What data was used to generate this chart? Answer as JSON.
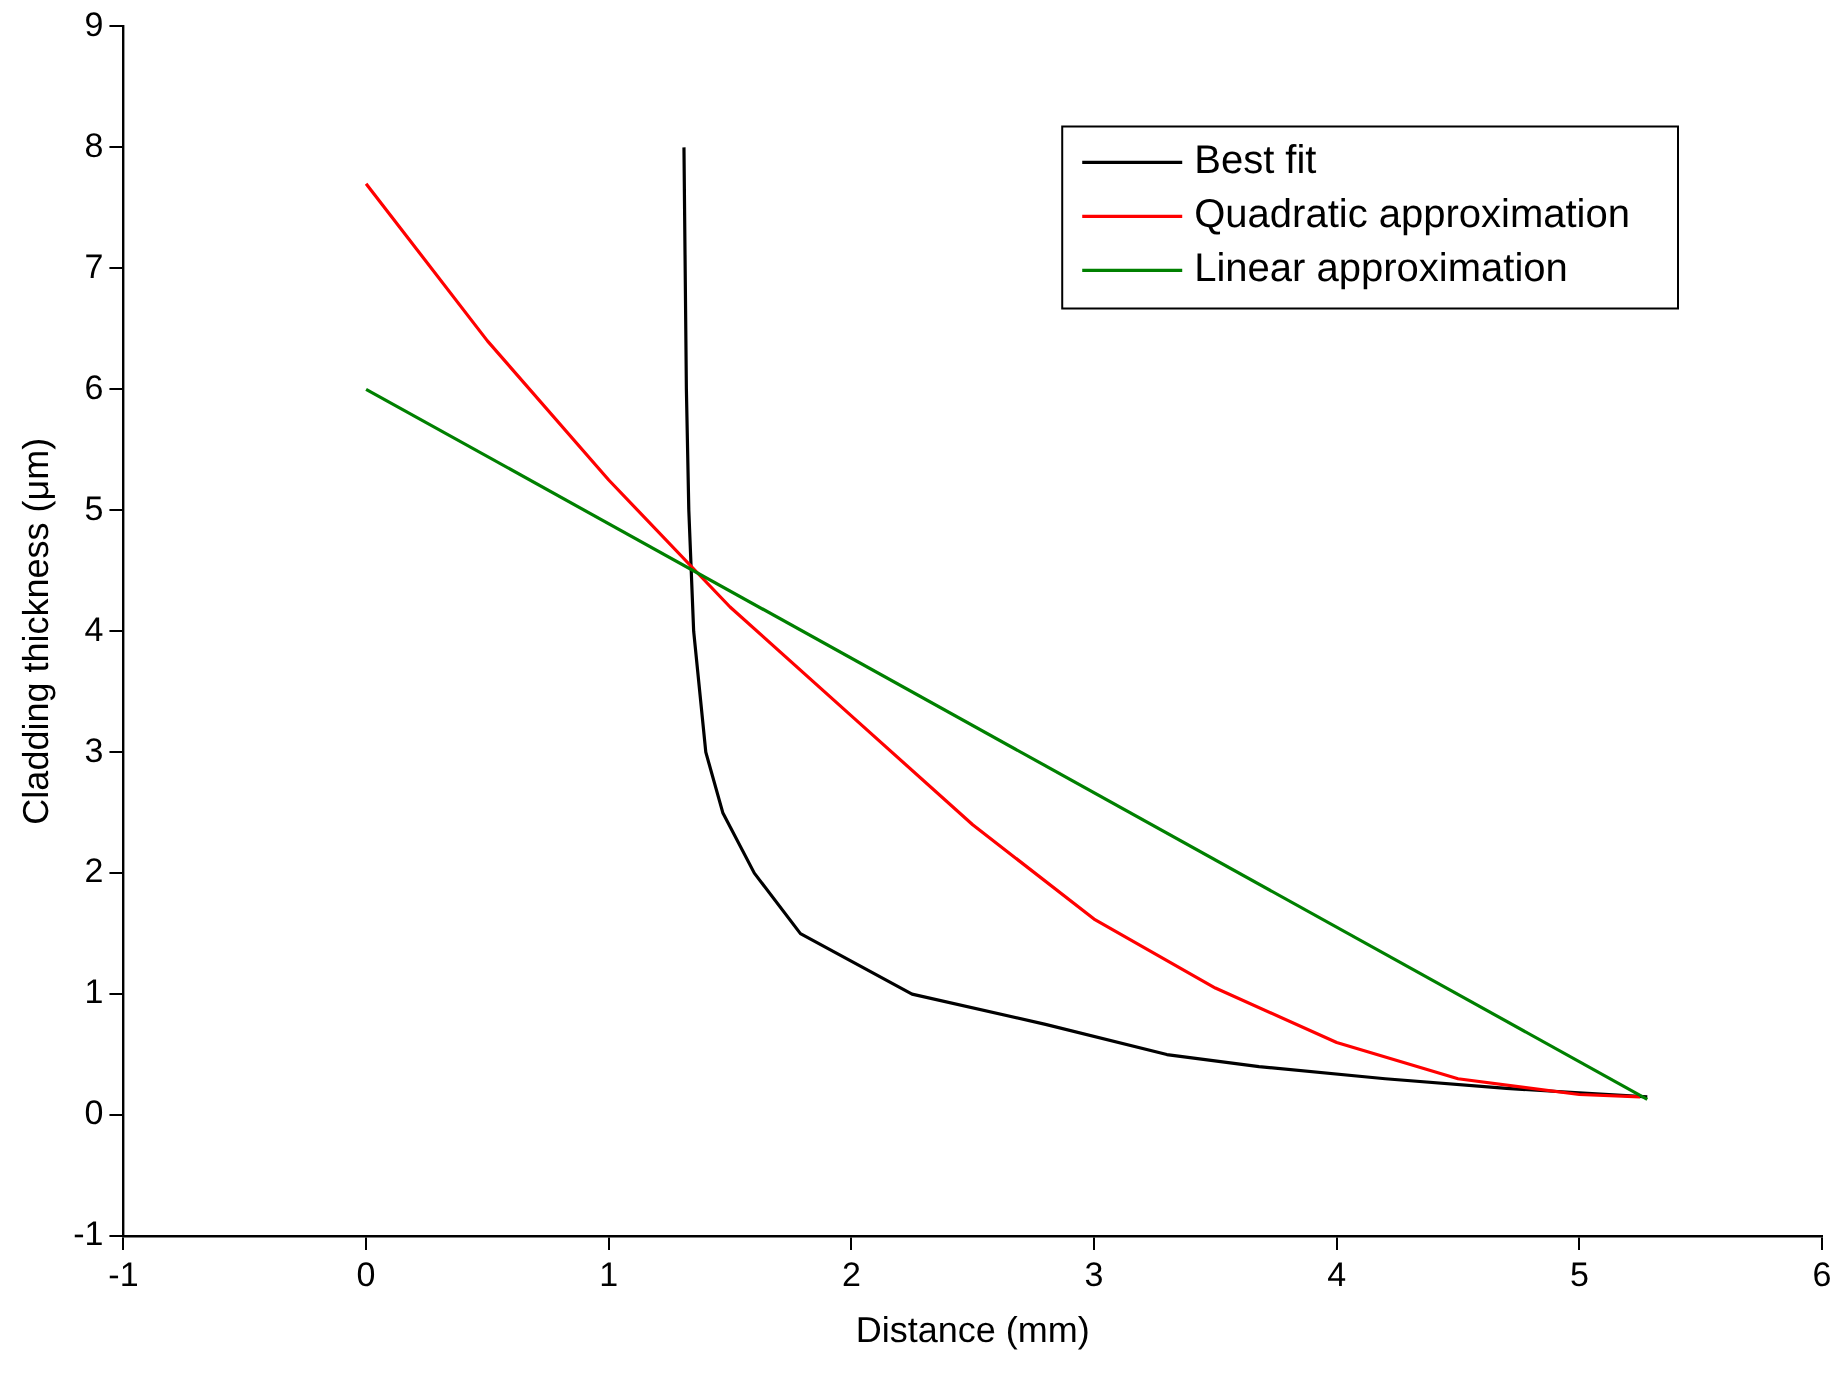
{
  "chart_data": {
    "type": "line",
    "xlabel": "Distance (mm)",
    "ylabel": "Cladding thickness (μm)",
    "xlim": [
      -1,
      6
    ],
    "xticks": [
      -1,
      0,
      1,
      2,
      3,
      4,
      5,
      6
    ],
    "ylim": [
      -1,
      9
    ],
    "yticks": [
      -1,
      0,
      1,
      2,
      3,
      4,
      5,
      6,
      7,
      8,
      9
    ],
    "grid": false,
    "legend": "top right",
    "marker": "none",
    "line_style": "solid",
    "series": [
      {
        "name": "Best fit",
        "color": "#000000",
        "x": [
          1.31,
          1.32,
          1.33,
          1.35,
          1.4,
          1.47,
          1.6,
          1.79,
          2.25,
          2.8,
          3.3,
          3.68,
          4.2,
          4.7,
          5.28
        ],
        "values": [
          8,
          6,
          5,
          4,
          3,
          2.5,
          2,
          1.5,
          1,
          0.75,
          0.5,
          0.4,
          0.3,
          0.22,
          0.15
        ]
      },
      {
        "name": "Quadratic approximation",
        "color": "#ff0000",
        "x": [
          0,
          0.5,
          1,
          1.5,
          2,
          2.5,
          3,
          3.5,
          4,
          4.5,
          5,
          5.25
        ],
        "values": [
          7.7,
          6.4,
          5.25,
          4.2,
          3.3,
          2.4,
          1.62,
          1.05,
          0.6,
          0.3,
          0.17,
          0.15
        ]
      },
      {
        "name": "Linear approximation",
        "color": "#008000",
        "x": [
          0,
          5.28
        ],
        "values": [
          6,
          0.13
        ]
      }
    ]
  }
}
